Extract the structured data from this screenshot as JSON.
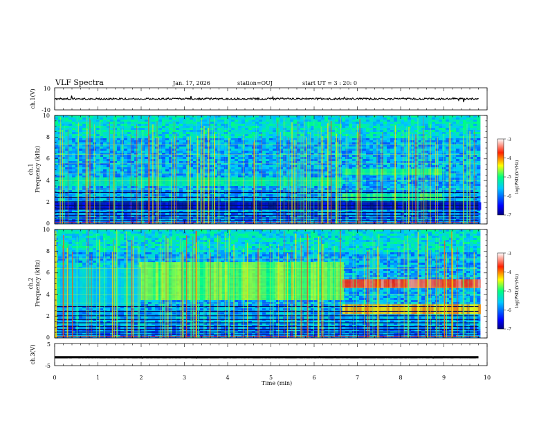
{
  "header": {
    "title": "VLF Spectra",
    "date": "Jan. 17, 2026",
    "station": "station=OUJ",
    "start": "start  UT =   3 : 20: 0"
  },
  "chart_data": [
    {
      "type": "line",
      "name": "ch1-waveform",
      "ylabel": "ch.1(V)",
      "ylim": [
        -10,
        10
      ],
      "ytick_labels": [
        "10",
        "-10"
      ],
      "xlim": [
        0,
        10
      ],
      "trace_level": 0
    },
    {
      "type": "heatmap",
      "name": "ch1-spectrogram",
      "ylabel_line1": "ch.1",
      "ylabel_line2": "Frequency (kHz)",
      "ylim": [
        0,
        10
      ],
      "ytick_labels": [
        "0",
        "2",
        "4",
        "6",
        "8",
        "10"
      ],
      "xlim": [
        0,
        10
      ],
      "data_end_min": 9.8,
      "change_time_min": 6.65,
      "bands": [
        {
          "t0": 0,
          "t1": 10,
          "f0": 1.3,
          "f1": 2.0,
          "level": 0.05
        },
        {
          "t0": 0,
          "t1": 6.65,
          "f0": 3.5,
          "f1": 4.3,
          "level": 0.45
        },
        {
          "t0": 6.65,
          "t1": 8.9,
          "f0": 4.5,
          "f1": 5.1,
          "level": 0.5
        },
        {
          "t0": 6.65,
          "t1": 8.9,
          "f0": 2.2,
          "f1": 2.8,
          "level": 0.5
        }
      ],
      "colorbar": {
        "label": "log(PSD)(V²/Hz)",
        "ticks": [
          "-3",
          "-4",
          "-5",
          "-6",
          "-7"
        ]
      }
    },
    {
      "type": "heatmap",
      "name": "ch2-spectrogram",
      "ylabel_line1": "ch.2",
      "ylabel_line2": "Frequency (kHz)",
      "ylim": [
        0,
        10
      ],
      "ytick_labels": [
        "0",
        "2",
        "4",
        "6",
        "8",
        "10"
      ],
      "xlim": [
        0,
        10
      ],
      "data_end_min": 9.8,
      "change_time_min": 6.65,
      "bands": [
        {
          "t0": 1.95,
          "t1": 6.65,
          "f0": 3.5,
          "f1": 7.0,
          "level": 0.55
        },
        {
          "t0": 6.65,
          "t1": 9.8,
          "f0": 4.6,
          "f1": 5.4,
          "level": 0.85
        },
        {
          "t0": 6.65,
          "t1": 9.8,
          "f0": 2.2,
          "f1": 3.1,
          "level": 0.7
        },
        {
          "t0": 0,
          "t1": 1.95,
          "f0": 3.0,
          "f1": 6.5,
          "level": 0.38
        }
      ],
      "colorbar": {
        "label": "log(PSD)(V²/Hz)",
        "ticks": [
          "-3",
          "-4",
          "-5",
          "-6",
          "-7"
        ]
      }
    },
    {
      "type": "line",
      "name": "ch3-waveform",
      "ylabel": "ch.3(V)",
      "ylim": [
        -5,
        5
      ],
      "ytick_labels": [
        "5",
        "-5"
      ],
      "xlim": [
        0,
        10
      ],
      "trace_level": -1.2
    }
  ],
  "xaxis": {
    "label": "Time (min)",
    "range": [
      0,
      10
    ],
    "tick_labels": [
      "0",
      "1",
      "2",
      "3",
      "4",
      "5",
      "6",
      "7",
      "8",
      "9",
      "10"
    ]
  }
}
